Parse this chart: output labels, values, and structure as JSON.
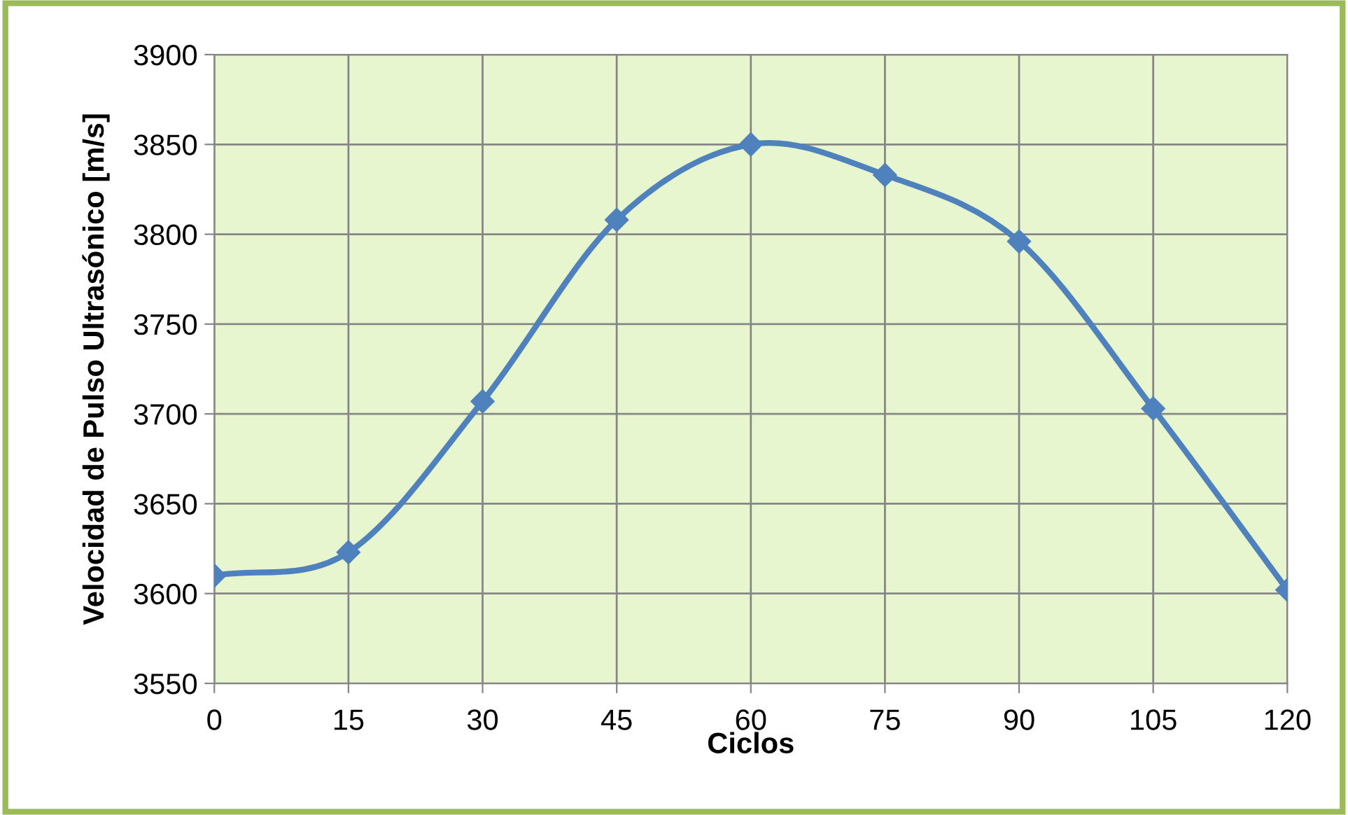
{
  "chart_data": {
    "type": "line",
    "xlabel": "Ciclos",
    "ylabel": "Velocidad de Pulso Ultrasónico [m/s]",
    "x": [
      0,
      15,
      30,
      45,
      60,
      75,
      90,
      105,
      120
    ],
    "series": [
      {
        "color": "#4f81bd",
        "values": [
          3610,
          3623,
          3707,
          3808,
          3850,
          3833,
          3796,
          3703,
          3602
        ]
      }
    ],
    "xlim": [
      0,
      120
    ],
    "xticks": [
      0,
      15,
      30,
      45,
      60,
      75,
      90,
      105,
      120
    ],
    "ylim": [
      3550,
      3900
    ],
    "yticks": [
      3550,
      3600,
      3650,
      3700,
      3750,
      3800,
      3850,
      3900
    ],
    "grid": true,
    "marker": "diamond",
    "line_style": "solid",
    "legend": false
  }
}
